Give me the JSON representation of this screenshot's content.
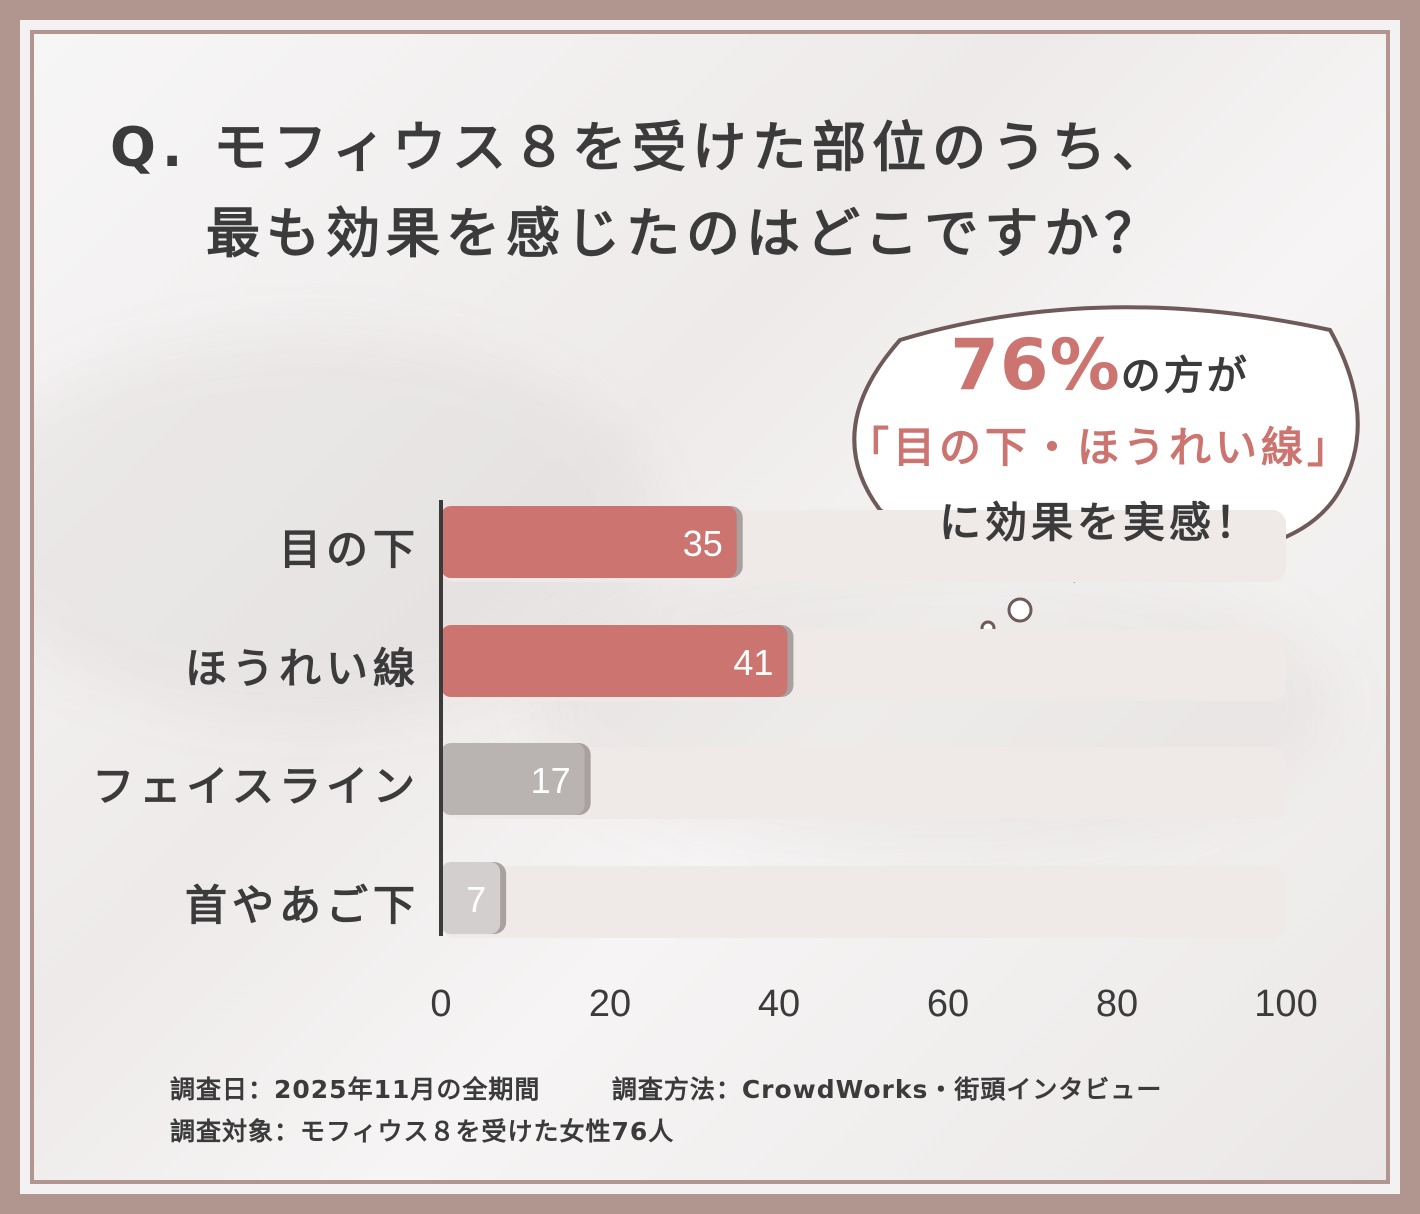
{
  "title": {
    "line1": "Q. モフィウス８を受けた部位のうち、",
    "line2": "最も効果を感じたのはどこですか？"
  },
  "callout": {
    "pct": "76%",
    "pct_suffix": "の方が",
    "highlight": "「目の下・ほうれい線」",
    "tail": "に効果を実感！"
  },
  "colors": {
    "primary_bar": "#cc7470",
    "secondary_bar": "#b9b3b1",
    "tertiary_bar": "#d3cfce",
    "track": "#efe9e8",
    "accent_text": "#cc7470",
    "frame": "#b0968f"
  },
  "chart_data": {
    "type": "bar",
    "orientation": "horizontal",
    "categories": [
      "目の下",
      "ほうれい線",
      "フェイスライン",
      "首やあご下"
    ],
    "values": [
      35,
      41,
      17,
      7
    ],
    "xlim": [
      0,
      100
    ],
    "xticks": [
      "0",
      "20",
      "40",
      "60",
      "80",
      "100"
    ],
    "data_labels": [
      "35",
      "41",
      "17",
      "7"
    ]
  },
  "footer": {
    "line1_a": "調査日：2025年11月の全期間",
    "line1_b": "調査方法：CrowdWorks・街頭インタビュー",
    "line2": "調査対象：モフィウス８を受けた女性76人"
  }
}
